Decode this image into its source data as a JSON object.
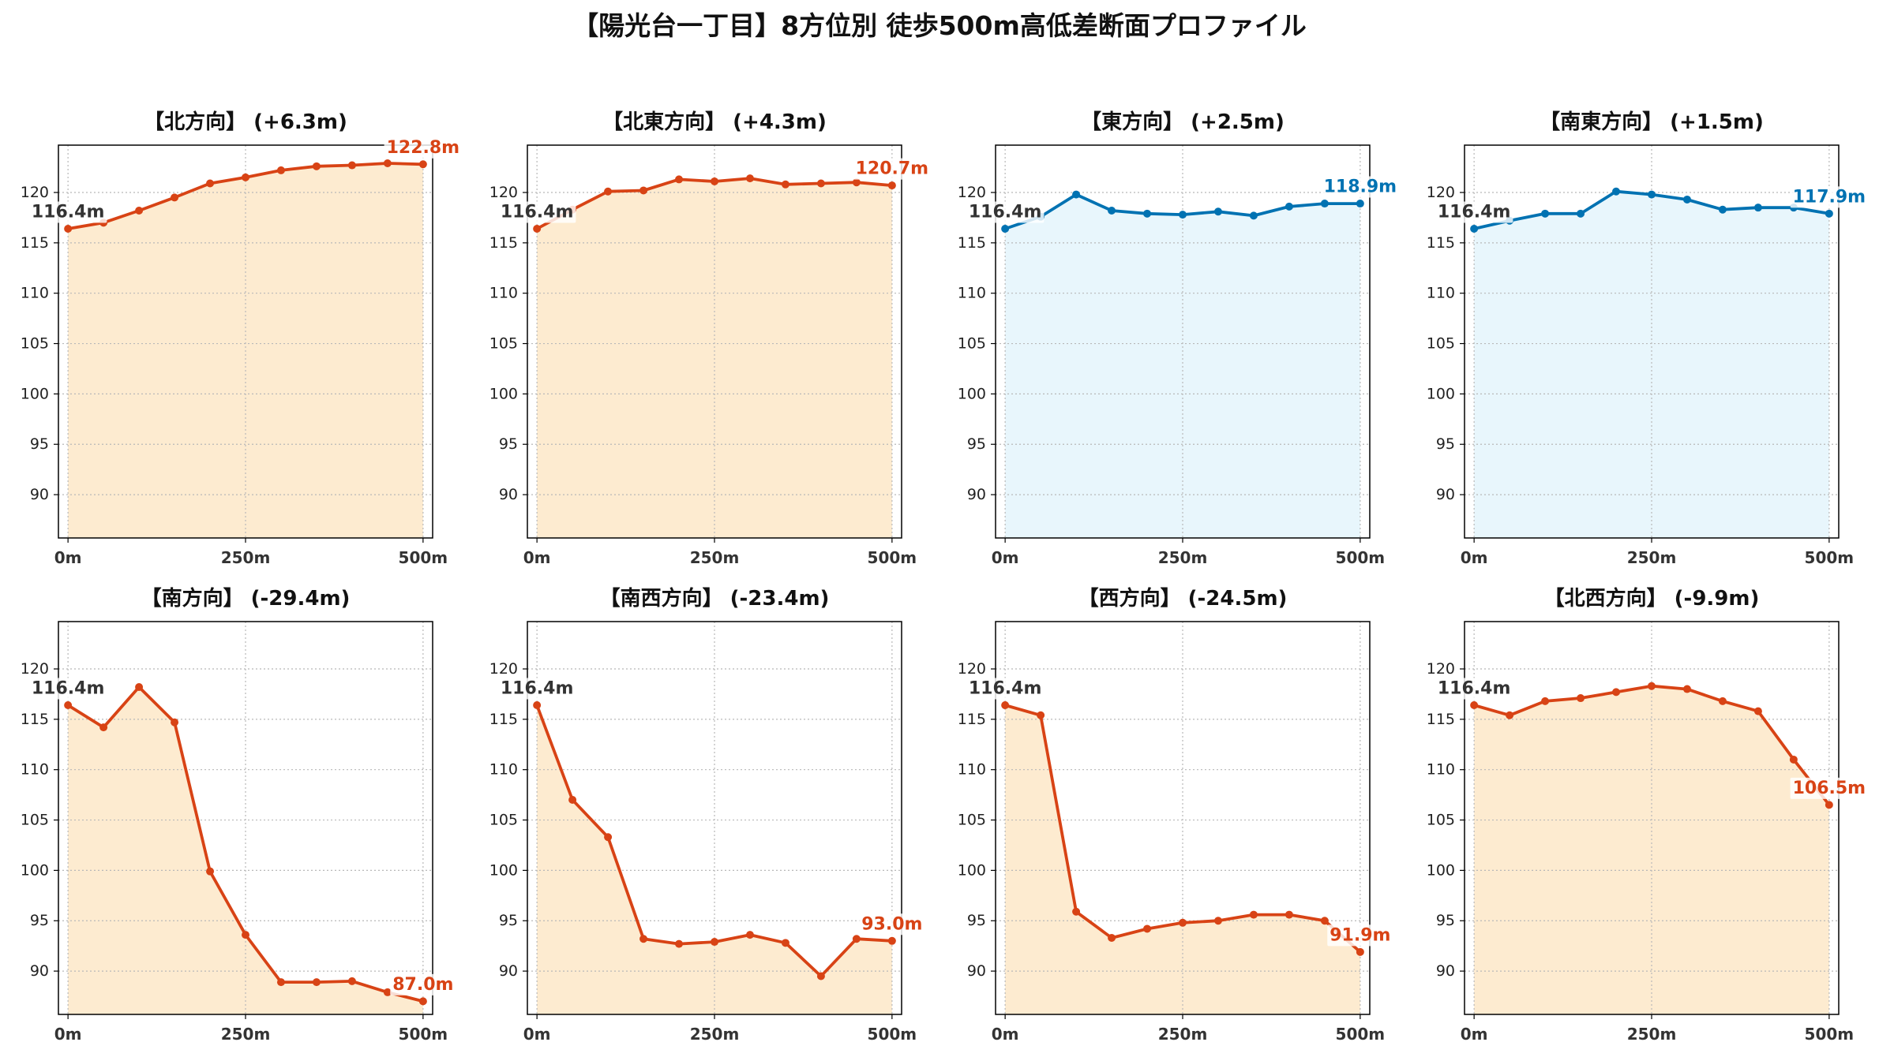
{
  "title": "【陽光台一丁目】8方位別 徒歩500m高低差断面プロファイル",
  "chart_data": [
    {
      "type": "area",
      "title": "【北方向】 (+6.3m)",
      "x": [
        0,
        50,
        100,
        150,
        200,
        250,
        300,
        350,
        400,
        450,
        500
      ],
      "series": [
        {
          "values": [
            116.4,
            117.0,
            118.2,
            119.5,
            120.9,
            121.5,
            122.2,
            122.6,
            122.7,
            122.9,
            122.8
          ]
        }
      ],
      "xticks": [
        0,
        250,
        500
      ],
      "xtick_labels": [
        "0m",
        "250m",
        "500m"
      ],
      "yticks": [
        90,
        95,
        100,
        105,
        110,
        115,
        120
      ],
      "xlim": [
        -13.5,
        513.5
      ],
      "ylim": [
        85.7,
        124.7
      ],
      "grid": true,
      "line_color": "#d84315",
      "fill_color": "#fdebd0",
      "annotations": [
        {
          "x": 0,
          "y": 116.4,
          "text": "116.4m",
          "color": "#333333"
        },
        {
          "x": 500,
          "y": 122.8,
          "text": "122.8m",
          "color": "#d84315"
        }
      ]
    },
    {
      "type": "area",
      "title": "【北東方向】 (+4.3m)",
      "x": [
        0,
        50,
        100,
        150,
        200,
        250,
        300,
        350,
        400,
        450,
        500
      ],
      "series": [
        {
          "values": [
            116.4,
            118.3,
            120.1,
            120.2,
            121.3,
            121.1,
            121.4,
            120.8,
            120.9,
            121.0,
            120.7
          ]
        }
      ],
      "xticks": [
        0,
        250,
        500
      ],
      "xtick_labels": [
        "0m",
        "250m",
        "500m"
      ],
      "yticks": [
        90,
        95,
        100,
        105,
        110,
        115,
        120
      ],
      "xlim": [
        -13.5,
        513.5
      ],
      "ylim": [
        85.7,
        124.7
      ],
      "grid": true,
      "line_color": "#d84315",
      "fill_color": "#fdebd0",
      "annotations": [
        {
          "x": 0,
          "y": 116.4,
          "text": "116.4m",
          "color": "#333333"
        },
        {
          "x": 500,
          "y": 120.7,
          "text": "120.7m",
          "color": "#d84315"
        }
      ]
    },
    {
      "type": "area",
      "title": "【東方向】 (+2.5m)",
      "x": [
        0,
        50,
        100,
        150,
        200,
        250,
        300,
        350,
        400,
        450,
        500
      ],
      "series": [
        {
          "values": [
            116.4,
            117.6,
            119.8,
            118.2,
            117.9,
            117.8,
            118.1,
            117.7,
            118.6,
            118.9,
            118.9
          ]
        }
      ],
      "xticks": [
        0,
        250,
        500
      ],
      "xtick_labels": [
        "0m",
        "250m",
        "500m"
      ],
      "yticks": [
        90,
        95,
        100,
        105,
        110,
        115,
        120
      ],
      "xlim": [
        -13.5,
        513.5
      ],
      "ylim": [
        85.7,
        124.7
      ],
      "grid": true,
      "line_color": "#0072b2",
      "fill_color": "#e8f6fc",
      "annotations": [
        {
          "x": 0,
          "y": 116.4,
          "text": "116.4m",
          "color": "#333333"
        },
        {
          "x": 500,
          "y": 118.9,
          "text": "118.9m",
          "color": "#0072b2"
        }
      ]
    },
    {
      "type": "area",
      "title": "【南東方向】 (+1.5m)",
      "x": [
        0,
        50,
        100,
        150,
        200,
        250,
        300,
        350,
        400,
        450,
        500
      ],
      "series": [
        {
          "values": [
            116.4,
            117.2,
            117.9,
            117.9,
            120.1,
            119.8,
            119.3,
            118.3,
            118.5,
            118.5,
            117.9
          ]
        }
      ],
      "xticks": [
        0,
        250,
        500
      ],
      "xtick_labels": [
        "0m",
        "250m",
        "500m"
      ],
      "yticks": [
        90,
        95,
        100,
        105,
        110,
        115,
        120
      ],
      "xlim": [
        -13.5,
        513.5
      ],
      "ylim": [
        85.7,
        124.7
      ],
      "grid": true,
      "line_color": "#0072b2",
      "fill_color": "#e8f6fc",
      "annotations": [
        {
          "x": 0,
          "y": 116.4,
          "text": "116.4m",
          "color": "#333333"
        },
        {
          "x": 500,
          "y": 117.9,
          "text": "117.9m",
          "color": "#0072b2"
        }
      ]
    },
    {
      "type": "area",
      "title": "【南方向】 (-29.4m)",
      "x": [
        0,
        50,
        100,
        150,
        200,
        250,
        300,
        350,
        400,
        450,
        500
      ],
      "series": [
        {
          "values": [
            116.4,
            114.2,
            118.2,
            114.7,
            99.9,
            93.6,
            88.9,
            88.9,
            89.0,
            87.9,
            87.0
          ]
        }
      ],
      "xticks": [
        0,
        250,
        500
      ],
      "xtick_labels": [
        "0m",
        "250m",
        "500m"
      ],
      "yticks": [
        90,
        95,
        100,
        105,
        110,
        115,
        120
      ],
      "xlim": [
        -13.5,
        513.5
      ],
      "ylim": [
        85.7,
        124.7
      ],
      "grid": true,
      "line_color": "#d84315",
      "fill_color": "#fdebd0",
      "annotations": [
        {
          "x": 0,
          "y": 116.4,
          "text": "116.4m",
          "color": "#333333"
        },
        {
          "x": 500,
          "y": 87.0,
          "text": "87.0m",
          "color": "#d84315"
        }
      ]
    },
    {
      "type": "area",
      "title": "【南西方向】 (-23.4m)",
      "x": [
        0,
        50,
        100,
        150,
        200,
        250,
        300,
        350,
        400,
        450,
        500
      ],
      "series": [
        {
          "values": [
            116.4,
            107.0,
            103.3,
            93.2,
            92.7,
            92.9,
            93.6,
            92.8,
            89.5,
            93.2,
            93.0
          ]
        }
      ],
      "xticks": [
        0,
        250,
        500
      ],
      "xtick_labels": [
        "0m",
        "250m",
        "500m"
      ],
      "yticks": [
        90,
        95,
        100,
        105,
        110,
        115,
        120
      ],
      "xlim": [
        -13.5,
        513.5
      ],
      "ylim": [
        85.7,
        124.7
      ],
      "grid": true,
      "line_color": "#d84315",
      "fill_color": "#fdebd0",
      "annotations": [
        {
          "x": 0,
          "y": 116.4,
          "text": "116.4m",
          "color": "#333333"
        },
        {
          "x": 500,
          "y": 93.0,
          "text": "93.0m",
          "color": "#d84315"
        }
      ]
    },
    {
      "type": "area",
      "title": "【西方向】 (-24.5m)",
      "x": [
        0,
        50,
        100,
        150,
        200,
        250,
        300,
        350,
        400,
        450,
        500
      ],
      "series": [
        {
          "values": [
            116.4,
            115.4,
            95.9,
            93.3,
            94.2,
            94.8,
            95.0,
            95.6,
            95.6,
            95.0,
            91.9
          ]
        }
      ],
      "xticks": [
        0,
        250,
        500
      ],
      "xtick_labels": [
        "0m",
        "250m",
        "500m"
      ],
      "yticks": [
        90,
        95,
        100,
        105,
        110,
        115,
        120
      ],
      "xlim": [
        -13.5,
        513.5
      ],
      "ylim": [
        85.7,
        124.7
      ],
      "grid": true,
      "line_color": "#d84315",
      "fill_color": "#fdebd0",
      "annotations": [
        {
          "x": 0,
          "y": 116.4,
          "text": "116.4m",
          "color": "#333333"
        },
        {
          "x": 500,
          "y": 91.9,
          "text": "91.9m",
          "color": "#d84315"
        }
      ]
    },
    {
      "type": "area",
      "title": "【北西方向】 (-9.9m)",
      "x": [
        0,
        50,
        100,
        150,
        200,
        250,
        300,
        350,
        400,
        450,
        500
      ],
      "series": [
        {
          "values": [
            116.4,
            115.4,
            116.8,
            117.1,
            117.7,
            118.3,
            118.0,
            116.8,
            115.8,
            111.0,
            106.5
          ]
        }
      ],
      "xticks": [
        0,
        250,
        500
      ],
      "xtick_labels": [
        "0m",
        "250m",
        "500m"
      ],
      "yticks": [
        90,
        95,
        100,
        105,
        110,
        115,
        120
      ],
      "xlim": [
        -13.5,
        513.5
      ],
      "ylim": [
        85.7,
        124.7
      ],
      "grid": true,
      "line_color": "#d84315",
      "fill_color": "#fdebd0",
      "annotations": [
        {
          "x": 0,
          "y": 116.4,
          "text": "116.4m",
          "color": "#333333"
        },
        {
          "x": 500,
          "y": 106.5,
          "text": "106.5m",
          "color": "#d84315"
        }
      ]
    }
  ]
}
